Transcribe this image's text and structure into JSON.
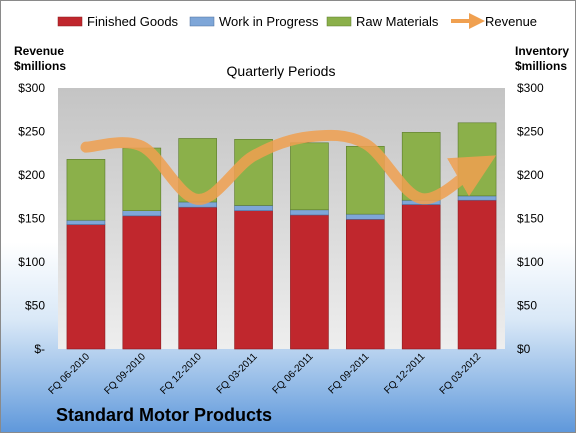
{
  "chart_data": {
    "type": "bar",
    "stacked": true,
    "title": "Quarterly Periods",
    "footer": "Standard Motor Products",
    "y_left_label": [
      "Revenue",
      "$millions"
    ],
    "y_right_label": [
      "Inventory",
      "$millions"
    ],
    "ylim": [
      0,
      300
    ],
    "yticks_left": [
      "$-",
      "$50",
      "$100",
      "$150",
      "$200",
      "$250",
      "$300"
    ],
    "yticks_right": [
      "$0",
      "$50",
      "$100",
      "$150",
      "$200",
      "$250",
      "$300"
    ],
    "grid": false,
    "legend_position": "top",
    "categories": [
      "FQ 06-2010",
      "FQ 09-2010",
      "FQ 12-2010",
      "FQ 03-2011",
      "FQ 06-2011",
      "FQ 09-2011",
      "FQ 12-2011",
      "FQ 03-2012"
    ],
    "series": [
      {
        "name": "Finished Goods",
        "color": "#c0272d",
        "values": [
          143,
          153,
          163,
          159,
          154,
          149,
          166,
          171
        ]
      },
      {
        "name": "Work in Progress",
        "color": "#7ea6d8",
        "values": [
          5,
          6,
          6,
          6,
          6,
          6,
          5,
          5
        ]
      },
      {
        "name": "Raw Materials",
        "color": "#8bb04a",
        "values": [
          70,
          72,
          73,
          76,
          77,
          78,
          78,
          84
        ]
      }
    ],
    "line_series": {
      "name": "Revenue",
      "color": "#f0a050",
      "values": [
        232,
        233,
        172,
        222,
        244,
        236,
        173,
        210
      ]
    }
  }
}
